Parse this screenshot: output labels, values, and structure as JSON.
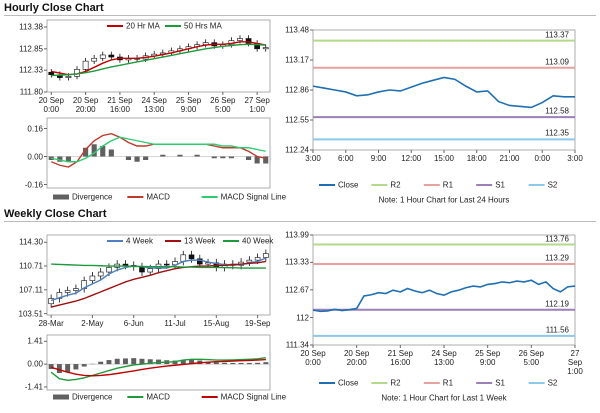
{
  "headings": [
    "Hourly Close Chart",
    "Weekly Close Chart"
  ],
  "chart_data": [
    {
      "type": "candlestick",
      "legend": "top",
      "categories": [
        "20 Sep\n0:00",
        null,
        null,
        null,
        "20 Sep\n20:00",
        null,
        null,
        null,
        "21 Sep\n16:00",
        null,
        null,
        null,
        "24 Sep\n13:00",
        null,
        null,
        null,
        "25 Sep\n9:00",
        null,
        null,
        null,
        "26 Sep\n5:00",
        null,
        null,
        null,
        "27 Sep\n1:00",
        null
      ],
      "open": [
        112.28,
        112.22,
        112.15,
        112.18,
        112.35,
        112.55,
        112.62,
        112.7,
        112.65,
        112.58,
        112.62,
        112.6,
        112.68,
        112.72,
        112.75,
        112.8,
        112.85,
        112.9,
        112.95,
        113.0,
        112.92,
        112.95,
        113.05,
        113.1,
        112.98,
        112.85
      ],
      "high": [
        112.36,
        112.3,
        112.26,
        112.43,
        112.63,
        112.7,
        112.78,
        112.78,
        112.73,
        112.7,
        112.7,
        112.76,
        112.8,
        112.83,
        112.88,
        112.93,
        112.98,
        113.03,
        113.08,
        113.08,
        113.03,
        113.13,
        113.18,
        113.18,
        113.06,
        112.96
      ],
      "low": [
        112.15,
        112.08,
        112.08,
        112.11,
        112.28,
        112.48,
        112.55,
        112.58,
        112.51,
        112.51,
        112.53,
        112.53,
        112.61,
        112.65,
        112.68,
        112.73,
        112.78,
        112.83,
        112.88,
        112.85,
        112.85,
        112.88,
        112.98,
        112.91,
        112.78,
        112.78
      ],
      "close": [
        112.22,
        112.15,
        112.18,
        112.35,
        112.55,
        112.62,
        112.7,
        112.65,
        112.58,
        112.62,
        112.6,
        112.68,
        112.72,
        112.75,
        112.8,
        112.85,
        112.9,
        112.95,
        113.0,
        112.92,
        112.95,
        113.05,
        113.1,
        112.98,
        112.85,
        112.88
      ],
      "series": [
        {
          "name": "20 Hr MA",
          "color": "#c00000",
          "values": [
            112.3,
            112.26,
            112.22,
            112.24,
            112.3,
            112.4,
            112.5,
            112.58,
            112.62,
            112.62,
            112.62,
            112.64,
            112.67,
            112.71,
            112.75,
            112.8,
            112.85,
            112.9,
            112.94,
            112.96,
            112.96,
            112.98,
            113.02,
            113.02,
            112.98,
            112.94
          ]
        },
        {
          "name": "50 Hrs MA",
          "color": "#1e9a3c",
          "values": [
            112.2,
            112.21,
            112.22,
            112.24,
            112.27,
            112.31,
            112.36,
            112.41,
            112.45,
            112.49,
            112.53,
            112.57,
            112.61,
            112.65,
            112.69,
            112.73,
            112.77,
            112.81,
            112.85,
            112.88,
            112.91,
            112.93,
            112.95,
            112.96,
            112.95,
            112.94
          ]
        }
      ],
      "ylim": [
        111.8,
        113.55
      ],
      "yticks": [
        {
          "value": 111.8,
          "label": "111.80"
        },
        112.33,
        112.85,
        113.38
      ]
    },
    {
      "type": "combo",
      "legend": "bottom",
      "series": [
        {
          "name": "Divergence",
          "color": "#606060",
          "style": "bar",
          "values": [
            -0.02,
            -0.03,
            -0.03,
            0,
            0.05,
            0.07,
            0.06,
            0.04,
            0,
            -0.02,
            -0.03,
            -0.02,
            0,
            0.01,
            0,
            0.01,
            0,
            0.01,
            0,
            -0.01,
            -0.01,
            -0.01,
            0,
            -0.02,
            -0.04,
            -0.04
          ]
        },
        {
          "name": "MACD",
          "color": "#c0392b",
          "values": [
            -0.03,
            -0.05,
            -0.06,
            -0.03,
            0.04,
            0.09,
            0.12,
            0.13,
            0.11,
            0.08,
            0.06,
            0.06,
            0.07,
            0.07,
            0.07,
            0.07,
            0.07,
            0.07,
            0.07,
            0.06,
            0.05,
            0.05,
            0.05,
            0.03,
            0,
            -0.01
          ]
        },
        {
          "name": "MACD Signal Line",
          "color": "#2ecc71",
          "values": [
            -0.01,
            -0.02,
            -0.03,
            -0.03,
            -0.01,
            0.02,
            0.06,
            0.09,
            0.11,
            0.1,
            0.09,
            0.08,
            0.07,
            0.07,
            0.07,
            0.07,
            0.07,
            0.07,
            0.07,
            0.07,
            0.06,
            0.06,
            0.05,
            0.05,
            0.04,
            0.03
          ]
        }
      ],
      "ylim": [
        -0.18,
        0.22
      ],
      "yticks": [
        -0.16,
        {
          "value": 0,
          "label": "0.00"
        },
        0.16
      ]
    },
    {
      "type": "line",
      "legend": "bottom",
      "note": "Note: 1 Hour Chart for Last 24 Hours",
      "categories": [
        "3:00",
        null,
        null,
        "6:00",
        null,
        null,
        "9:00",
        null,
        null,
        "12:00",
        null,
        null,
        "15:00",
        null,
        null,
        "18:00",
        null,
        null,
        "21:00",
        null,
        null,
        "0:00",
        null,
        null,
        "3:00"
      ],
      "series": [
        {
          "name": "Close",
          "color": "#1f6fb2",
          "values": [
            112.9,
            112.88,
            112.86,
            112.84,
            112.8,
            112.81,
            112.84,
            112.86,
            112.85,
            112.89,
            112.93,
            112.96,
            112.99,
            112.97,
            112.9,
            112.84,
            112.85,
            112.74,
            112.7,
            112.69,
            112.68,
            112.73,
            112.8,
            112.79,
            112.79
          ]
        }
      ],
      "levels": [
        {
          "name": "R2",
          "value": 113.37,
          "color": "#b5d98a"
        },
        {
          "name": "R1",
          "value": 113.09,
          "color": "#e8a0a0"
        },
        {
          "name": "S1",
          "value": 112.58,
          "color": "#9b7fb8"
        },
        {
          "name": "S2",
          "value": 112.35,
          "color": "#8ec8e8"
        }
      ],
      "ylim": [
        112.24,
        113.48
      ],
      "yticks": [
        112.24,
        112.55,
        112.86,
        113.17,
        113.48
      ]
    },
    {
      "type": "candlestick",
      "legend": "top",
      "categories": [
        "28-Mar",
        null,
        null,
        null,
        null,
        "2-May",
        null,
        null,
        null,
        null,
        "6-Jun",
        null,
        null,
        null,
        null,
        "11-Jul",
        null,
        null,
        null,
        null,
        "15-Aug",
        null,
        null,
        null,
        null,
        "19-Sep",
        null
      ],
      "open": [
        105.0,
        105.8,
        106.7,
        107.0,
        107.3,
        108.5,
        109.2,
        109.8,
        110.5,
        111.0,
        110.8,
        110.6,
        109.8,
        110.3,
        111.0,
        110.9,
        111.4,
        112.4,
        111.8,
        111.0,
        111.2,
        110.5,
        111.0,
        110.8,
        111.3,
        111.6,
        112.0
      ],
      "high": [
        106.4,
        107.3,
        107.6,
        107.9,
        109.1,
        109.8,
        110.4,
        111.1,
        111.6,
        111.6,
        111.4,
        111.2,
        110.9,
        111.6,
        111.6,
        112.0,
        113.0,
        113.0,
        112.4,
        111.8,
        111.8,
        111.6,
        111.6,
        111.9,
        112.2,
        112.6,
        113.2
      ],
      "low": [
        104.4,
        105.2,
        106.1,
        106.4,
        106.7,
        107.9,
        108.6,
        109.2,
        109.9,
        110.2,
        110.0,
        109.2,
        109.2,
        109.7,
        110.3,
        110.3,
        110.8,
        111.2,
        110.4,
        110.4,
        109.9,
        109.9,
        110.2,
        110.2,
        110.7,
        111.0,
        111.4
      ],
      "close": [
        105.8,
        106.7,
        107.0,
        107.3,
        108.5,
        109.2,
        109.8,
        110.5,
        111.0,
        110.8,
        110.6,
        109.8,
        110.3,
        111.0,
        110.9,
        111.4,
        112.4,
        111.8,
        111.0,
        111.2,
        110.5,
        111.0,
        110.8,
        111.3,
        111.6,
        112.0,
        112.6
      ],
      "series": [
        {
          "name": "4 Week",
          "color": "#4f7fc0",
          "values": [
            105.5,
            105.9,
            106.3,
            106.6,
            107.4,
            108.0,
            108.6,
            109.5,
            110.1,
            110.5,
            110.7,
            110.6,
            110.4,
            110.4,
            110.4,
            110.8,
            111.4,
            111.6,
            111.6,
            111.3,
            111.1,
            110.9,
            110.9,
            110.9,
            111.2,
            111.4,
            111.9
          ]
        },
        {
          "name": "13 Week",
          "color": "#a01010",
          "values": [
            104.5,
            104.8,
            105.1,
            105.4,
            105.8,
            106.3,
            106.8,
            107.3,
            107.8,
            108.3,
            108.7,
            109.0,
            109.3,
            109.7,
            110.0,
            110.3,
            110.5,
            110.6,
            110.7,
            110.7,
            110.8,
            110.8,
            110.9,
            111.0,
            111.1,
            111.2,
            111.4
          ]
        },
        {
          "name": "40 Week",
          "color": "#1e9a3c",
          "values": [
            111.0,
            110.95,
            110.9,
            110.85,
            110.8,
            110.8,
            110.75,
            110.7,
            110.7,
            110.7,
            110.65,
            110.65,
            110.6,
            110.6,
            110.6,
            110.6,
            110.55,
            110.55,
            110.5,
            110.5,
            110.5,
            110.45,
            110.45,
            110.4,
            110.4,
            110.4,
            110.4
          ]
        }
      ],
      "ylim": [
        103.3,
        115.4
      ],
      "yticks": [
        103.51,
        107.11,
        110.71,
        {
          "value": 114.3,
          "label": "114.30"
        }
      ]
    },
    {
      "type": "combo",
      "legend": "bottom",
      "series": [
        {
          "name": "Divergence",
          "color": "#606060",
          "style": "bar",
          "values": [
            -0.3,
            -0.55,
            -0.5,
            -0.33,
            -0.15,
            0.02,
            0.15,
            0.25,
            0.33,
            0.35,
            0.37,
            0.33,
            0.3,
            0.28,
            0.24,
            0.22,
            0.27,
            0.27,
            0.22,
            0.16,
            0.1,
            0.08,
            0.07,
            0.07,
            0.07,
            0.08,
            0.12
          ]
        },
        {
          "name": "MACD",
          "color": "#1e9a3c",
          "values": [
            -0.5,
            -0.9,
            -1.0,
            -0.95,
            -0.85,
            -0.7,
            -0.55,
            -0.4,
            -0.25,
            -0.15,
            -0.05,
            0,
            0.05,
            0.1,
            0.12,
            0.15,
            0.25,
            0.3,
            0.3,
            0.28,
            0.25,
            0.25,
            0.26,
            0.28,
            0.3,
            0.33,
            0.4
          ]
        },
        {
          "name": "MACD Signal Line",
          "color": "#c00000",
          "values": [
            -0.2,
            -0.35,
            -0.5,
            -0.62,
            -0.7,
            -0.72,
            -0.7,
            -0.65,
            -0.58,
            -0.5,
            -0.42,
            -0.33,
            -0.25,
            -0.18,
            -0.12,
            -0.07,
            -0.02,
            0.03,
            0.08,
            0.12,
            0.15,
            0.17,
            0.19,
            0.21,
            0.23,
            0.25,
            0.28
          ]
        }
      ],
      "ylim": [
        -1.6,
        1.8
      ],
      "yticks": [
        -1.41,
        {
          "value": 0,
          "label": "0.00"
        },
        1.41
      ]
    },
    {
      "type": "line",
      "legend": "bottom",
      "note": "Note: 1 Hour Chart for Last 1 Week",
      "categories": [
        "20 Sep\n0:00",
        null,
        null,
        null,
        null,
        null,
        "20 Sep\n20:00",
        null,
        null,
        null,
        null,
        null,
        "21 Sep\n16:00",
        null,
        null,
        null,
        null,
        null,
        "24 Sep\n13:00",
        null,
        null,
        null,
        null,
        null,
        "25 Sep\n9:00",
        null,
        null,
        null,
        null,
        null,
        "26 Sep\n5:00",
        null,
        null,
        null,
        null,
        null,
        "27 Sep\n1:00"
      ],
      "series": [
        {
          "name": "Close",
          "color": "#1f6fb2",
          "values": [
            112.18,
            112.15,
            112.16,
            112.2,
            112.17,
            112.19,
            112.22,
            112.52,
            112.55,
            112.6,
            112.58,
            112.66,
            112.62,
            112.7,
            112.64,
            112.6,
            112.66,
            112.58,
            112.54,
            112.62,
            112.66,
            112.72,
            112.76,
            112.74,
            112.8,
            112.82,
            112.86,
            112.84,
            112.88,
            112.86,
            112.9,
            112.8,
            112.86,
            112.7,
            112.62,
            112.74,
            112.76
          ]
        }
      ],
      "levels": [
        {
          "name": "R2",
          "value": 113.76,
          "color": "#b5d98a"
        },
        {
          "name": "R1",
          "value": 113.29,
          "color": "#e8a0a0"
        },
        {
          "name": "S1",
          "value": 112.19,
          "color": "#9b7fb8"
        },
        {
          "name": "S2",
          "value": 111.56,
          "color": "#8ec8e8"
        }
      ],
      "ylim": [
        111.34,
        113.99
      ],
      "yticks": [
        111.34,
        112.0,
        112.67,
        113.33,
        113.99
      ]
    }
  ]
}
